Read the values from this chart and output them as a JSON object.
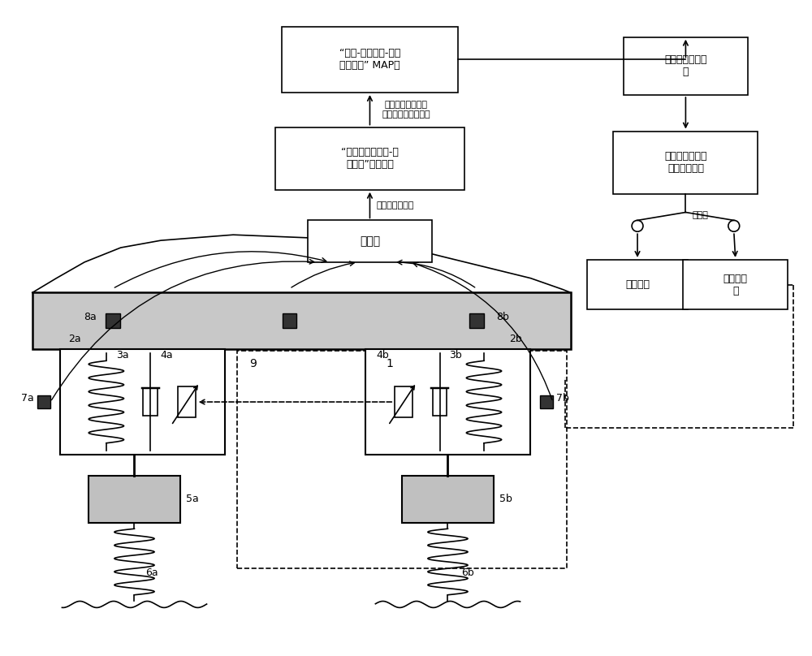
{
  "bg_color": "#ffffff",
  "map_box_text": "“车速-路面等级-主要\n激振频率” MAP图",
  "cluster_box_text": "“车辆动力学响应-路\n面等级”聚类模型",
  "sensor_box_text": "传感器",
  "freq_box_text": "路面主要激振频\n率",
  "strategy_box_text": "不同频域范围的\n阵尼调节策略",
  "low_freq_text": "低频控制",
  "high_freq_text": "中高频控\n制",
  "label_road_grade": "路面等级（基于模\n型的在线快速计算）",
  "label_dynamics": "车辆动力学响应",
  "label_switchable": "可切换"
}
